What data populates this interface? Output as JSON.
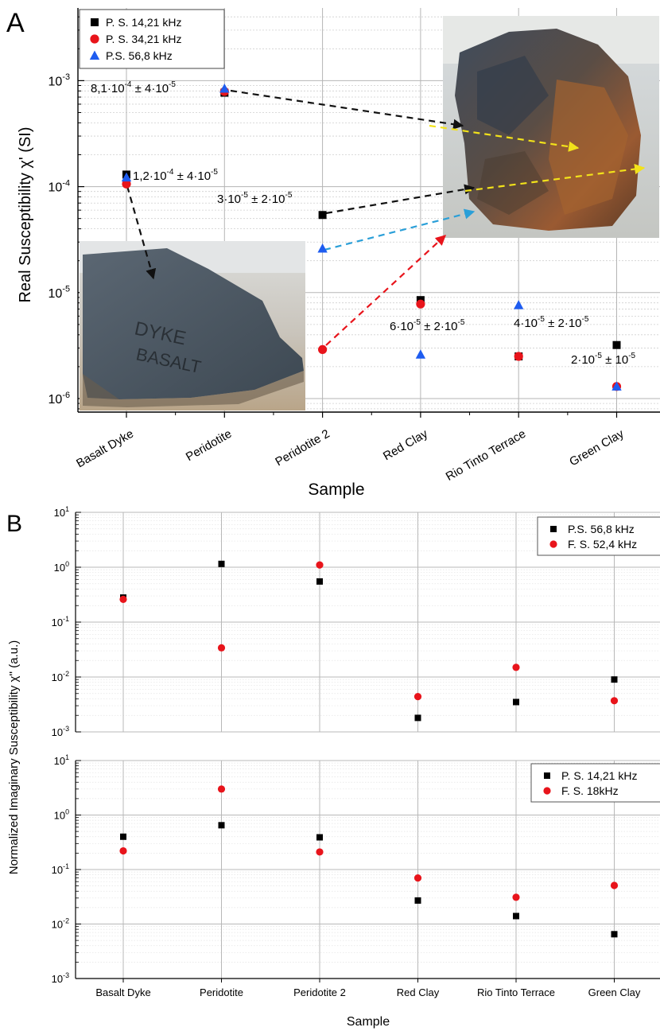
{
  "categories": [
    "Basalt Dyke",
    "Peridotite",
    "Peridotite 2",
    "Red Clay",
    "Rio Tinto Terrace",
    "Green Clay"
  ],
  "chart_data": [
    {
      "panel": "A",
      "type": "scatter",
      "xlabel": "Sample",
      "ylabel": "Real Susceptibility χ' (SI)",
      "yscale": "log",
      "ylim": [
        7e-07,
        0.003
      ],
      "yticks": [
        "10",
        "10",
        "10",
        "10"
      ],
      "ytick_exponents": [
        "-6",
        "-5",
        "-4",
        "-3"
      ],
      "ytick_values": [
        1e-06,
        1e-05,
        0.0001,
        0.001
      ],
      "grid": true,
      "legend_position": "top-left",
      "series": [
        {
          "name": "P. S. 14,21 kHz",
          "marker": "square",
          "color": "#000000",
          "values": [
            0.00013,
            0.00077,
            5.4e-05,
            8.5e-06,
            2.5e-06,
            3.2e-06
          ]
        },
        {
          "name": "P. S. 34,21 kHz",
          "marker": "circle",
          "color": "#e8141b",
          "values": [
            0.000106,
            0.00079,
            2.9e-06,
            7.8e-06,
            2.5e-06,
            1.3e-06
          ]
        },
        {
          "name": "P.S. 56,8 kHz",
          "marker": "triangle",
          "color": "#1e5cf0",
          "values": [
            0.000122,
            0.00084,
            2.6e-05,
            2.6e-06,
            7.6e-06,
            1.3e-06
          ]
        }
      ],
      "annotations": [
        {
          "base": "8,1·10",
          "exp1": "-4",
          "mid": " ± 4·10",
          "exp2": "-5"
        },
        {
          "base": "1,2·10",
          "exp1": "-4",
          "mid": " ± 4·10",
          "exp2": "-5"
        },
        {
          "base": "3·10",
          "exp1": "-5",
          "mid": " ± 2·10",
          "exp2": "-5"
        },
        {
          "base": "6·10",
          "exp1": "-5",
          "mid": " ± 2·10",
          "exp2": "-5"
        },
        {
          "base": "4·10",
          "exp1": "-5",
          "mid": " ± 2·10",
          "exp2": "-5"
        },
        {
          "base": "2·10",
          "exp1": "-5",
          "mid": " ± 10",
          "exp2": "-5"
        }
      ],
      "arrow_colors": {
        "black": "#111111",
        "red": "#e8141b",
        "blue": "#2a9fd8",
        "yellow": "#f2e21a"
      }
    },
    {
      "panel": "B-top",
      "type": "scatter",
      "yscale": "log",
      "ylim": [
        0.001,
        10
      ],
      "ytick_exponents": [
        "-3",
        "-2",
        "-1",
        "0",
        "1"
      ],
      "ytick_values": [
        0.001,
        0.01,
        0.1,
        1,
        10
      ],
      "legend_position": "top-right",
      "series": [
        {
          "name": "P.S. 56,8 kHz",
          "marker": "square",
          "color": "#000000",
          "values": [
            0.28,
            1.15,
            0.55,
            0.0018,
            0.0035,
            0.009
          ]
        },
        {
          "name": "F. S. 52,4 kHz",
          "marker": "circle",
          "color": "#e8141b",
          "values": [
            0.26,
            0.034,
            1.1,
            0.0044,
            0.015,
            0.0037
          ]
        }
      ]
    },
    {
      "panel": "B-bottom",
      "type": "scatter",
      "xlabel": "Sample",
      "yscale": "log",
      "ylim": [
        0.001,
        10
      ],
      "ytick_exponents": [
        "-3",
        "-2",
        "-1",
        "0",
        "1"
      ],
      "ytick_values": [
        0.001,
        0.01,
        0.1,
        1,
        10
      ],
      "legend_position": "top-right",
      "series": [
        {
          "name": "P. S. 14,21 kHz",
          "marker": "square",
          "color": "#000000",
          "values": [
            0.4,
            0.65,
            0.39,
            0.027,
            0.014,
            0.0065
          ]
        },
        {
          "name": "F. S. 18kHz",
          "marker": "circle",
          "color": "#e8141b",
          "values": [
            0.22,
            3.0,
            0.21,
            0.07,
            0.031,
            0.051
          ]
        }
      ]
    }
  ],
  "panelB": {
    "ylabel": "Normalized Imaginary Susceptibility χ'' (a.u.)"
  },
  "labels": {
    "panelA": "A",
    "panelB": "B",
    "tickBase": "10"
  }
}
